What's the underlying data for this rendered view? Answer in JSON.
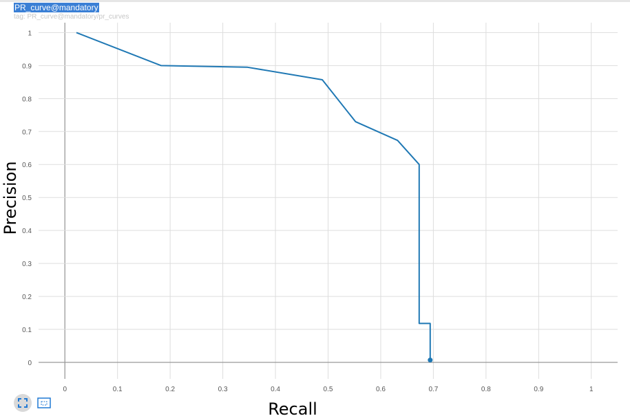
{
  "header": {
    "title": "PR_curve@mandatory",
    "subtitle": "tag: PR_curve@mandatory/pr_curves"
  },
  "toolbar": {
    "fit_icon": "fit-domain-icon",
    "selection_icon": "box-select-icon"
  },
  "colors": {
    "line": "#1f78b4",
    "grid": "#dddddd",
    "axis": "#999999",
    "title_bg": "#3a7fd5"
  },
  "chart_data": {
    "type": "line",
    "title": "",
    "xlabel": "Recall",
    "ylabel": "Precision",
    "xlim": [
      -0.05,
      1.05
    ],
    "ylim": [
      -0.05,
      1.03
    ],
    "grid": true,
    "x_ticks": [
      0,
      0.1,
      0.2,
      0.3,
      0.4,
      0.5,
      0.6,
      0.7,
      0.8,
      0.9,
      1
    ],
    "x_tick_labels": [
      "0",
      "0.1",
      "0.2",
      "0.3",
      "0.4",
      "0.5",
      "0.6",
      "0.7",
      "0.8",
      "0.9",
      "1"
    ],
    "y_ticks": [
      0,
      0.1,
      0.2,
      0.3,
      0.4,
      0.5,
      0.6,
      0.7,
      0.8,
      0.9,
      1
    ],
    "y_tick_labels": [
      "0",
      "0.1",
      "0.2",
      "0.3",
      "0.4",
      "0.5",
      "0.6",
      "0.7",
      "0.8",
      "0.9",
      "1"
    ],
    "series": [
      {
        "x": [
          0.022,
          0.183,
          0.347,
          0.489,
          0.552,
          0.632,
          0.673,
          0.673,
          0.694,
          0.694
        ],
        "y": [
          1.0,
          0.9,
          0.895,
          0.857,
          0.73,
          0.673,
          0.6,
          0.118,
          0.118,
          0.007
        ],
        "end_marker": [
          0.694,
          0.007
        ]
      }
    ]
  }
}
